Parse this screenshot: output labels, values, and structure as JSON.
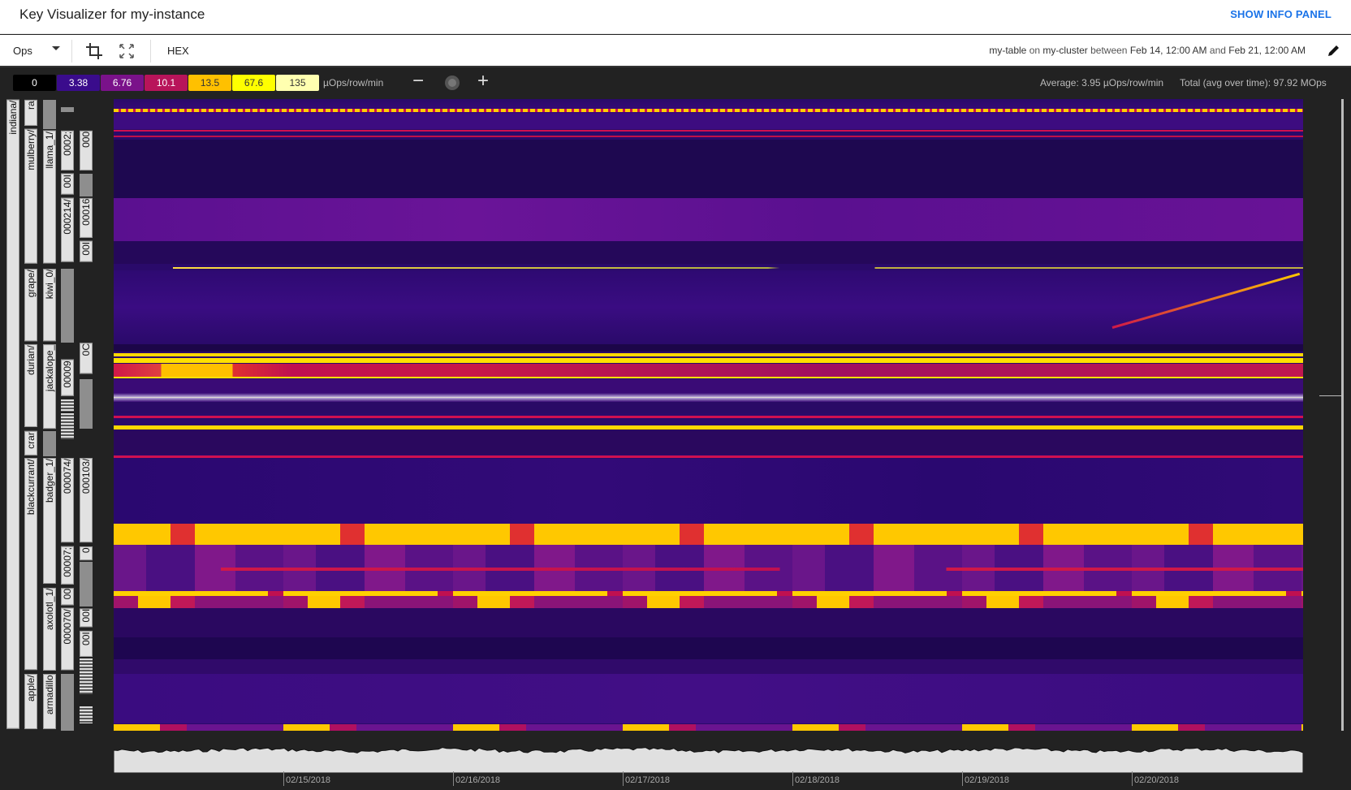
{
  "header": {
    "title": "Key Visualizer for my-instance",
    "info_panel_button": "SHOW INFO PANEL"
  },
  "toolbar": {
    "metric": "Ops",
    "hex_label": "HEX",
    "table": "my-table",
    "on": "on",
    "cluster": "my-cluster",
    "between": "between",
    "start": "Feb 14, 12:00 AM",
    "and": "and",
    "end": "Feb 21, 12:00 AM"
  },
  "legend": {
    "stops": [
      {
        "value": "0",
        "color": "#000000",
        "text": "#ffffff"
      },
      {
        "value": "3.38",
        "color": "#3a0c8c",
        "text": "#ffffff"
      },
      {
        "value": "6.76",
        "color": "#7a128a",
        "text": "#ffffff"
      },
      {
        "value": "10.1",
        "color": "#b8145a",
        "text": "#ffffff"
      },
      {
        "value": "13.5",
        "color": "#ffc000",
        "text": "#333333"
      },
      {
        "value": "67.6",
        "color": "#ffff00",
        "text": "#333333"
      },
      {
        "value": "135",
        "color": "#ffffb0",
        "text": "#333333"
      }
    ],
    "unit": "µOps/row/min"
  },
  "stats": {
    "average": "Average: 3.95 µOps/row/min",
    "total": "Total (avg over time): 97.92 MOps"
  },
  "row_labels": {
    "col1": [
      "indiana/"
    ],
    "col2": [
      "ra",
      "mulberry/",
      "grape/",
      "durian/",
      "crar",
      "blackcurrant/",
      "apple/"
    ],
    "col3": [
      "llama_1/",
      "kiwi_0/",
      "jackalope_",
      "badger_1/",
      "axolotl_1/",
      "armadillo"
    ],
    "col4": [
      "0002;",
      "00I",
      "000214/",
      "00009",
      "000074/",
      "00007;",
      "00",
      "000070/"
    ],
    "col5": [
      "000",
      "00016",
      "00I",
      "0C",
      "000103/",
      "0",
      "00I",
      "00I"
    ]
  },
  "time_axis": {
    "ticks": [
      "02/15/2018",
      "02/16/2018",
      "02/17/2018",
      "02/18/2018",
      "02/19/2018",
      "02/20/2018"
    ]
  }
}
